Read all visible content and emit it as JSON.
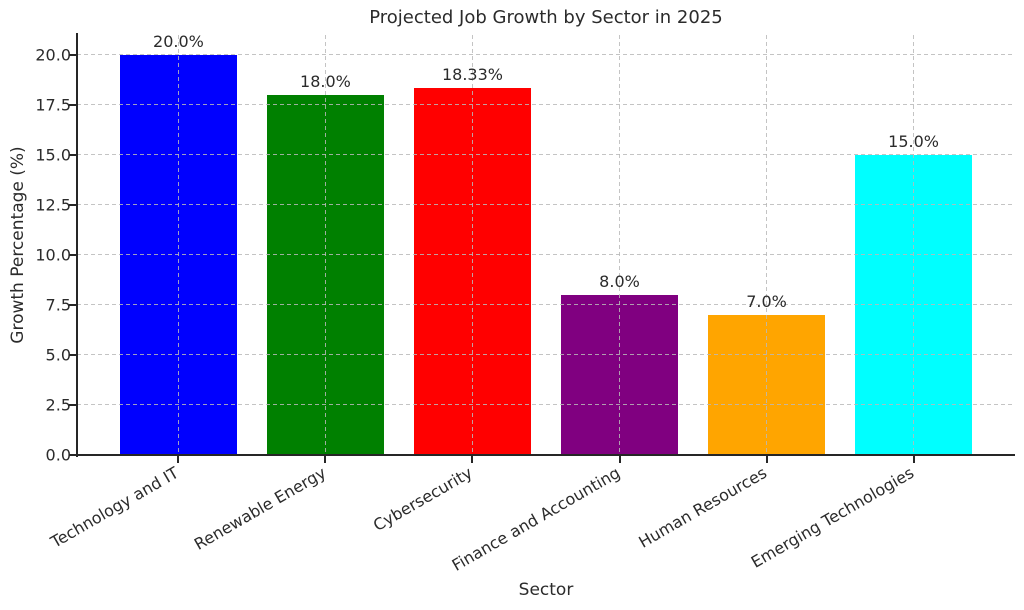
{
  "figure": {
    "title": "Projected Job Growth by Sector in 2025",
    "xlabel": "Sector",
    "ylabel": "Growth Percentage (%)"
  },
  "chart_data": {
    "type": "bar",
    "title": "Projected Job Growth by Sector in 2025",
    "xlabel": "Sector",
    "ylabel": "Growth Percentage (%)",
    "categories": [
      "Technology and IT",
      "Renewable Energy",
      "Cybersecurity",
      "Finance and Accounting",
      "Human Resources",
      "Emerging Technologies"
    ],
    "values": [
      20.0,
      18.0,
      18.33,
      8.0,
      7.0,
      15.0
    ],
    "value_labels": [
      "20.0%",
      "18.0%",
      "18.33%",
      "8.0%",
      "7.0%",
      "15.0%"
    ],
    "bar_colors": [
      "#0000ff",
      "#008000",
      "#ff0000",
      "#800080",
      "#ffa500",
      "#00ffff"
    ],
    "ylim": [
      0,
      21
    ],
    "yticks": [
      0.0,
      2.5,
      5.0,
      7.5,
      10.0,
      12.5,
      15.0,
      17.5,
      20.0
    ],
    "ytick_labels": [
      "0.0",
      "2.5",
      "5.0",
      "7.5",
      "10.0",
      "12.5",
      "15.0",
      "17.5",
      "20.0"
    ],
    "xtick_rotation_degrees": 30,
    "grid": "dashed, horizontal and vertical, drawn over bars",
    "legend": "none",
    "background_color": "#ffffff",
    "text_color": "#262626",
    "spine_color": "#262626",
    "grid_color": "#b9b9b9"
  }
}
